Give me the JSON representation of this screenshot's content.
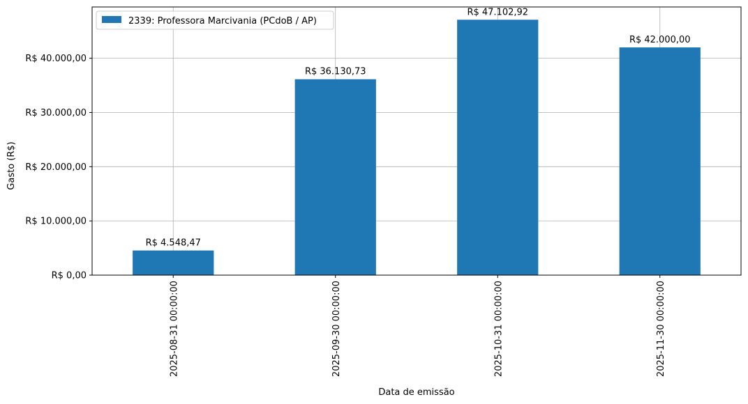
{
  "chart_data": {
    "type": "bar",
    "categories": [
      "2025-08-31 00:00:00",
      "2025-09-30 00:00:00",
      "2025-10-31 00:00:00",
      "2025-11-30 00:00:00"
    ],
    "series": [
      {
        "name": "2339: Professora Marcivania (PCdoB / AP)",
        "values": [
          4548.47,
          36130.73,
          47102.92,
          42000.0
        ],
        "color": "#1f77b4"
      }
    ],
    "data_labels": [
      "R$ 4.548,47",
      "R$ 36.130,73",
      "R$ 47.102,92",
      "R$ 42.000,00"
    ],
    "xlabel": "Data de emissão",
    "ylabel": "Gasto (R$)",
    "ylim": [
      0,
      49458.07
    ],
    "yticks": [
      0,
      10000,
      20000,
      30000,
      40000
    ],
    "ytick_labels": [
      "R$ 0,00",
      "R$ 10.000,00",
      "R$ 20.000,00",
      "R$ 30.000,00",
      "R$ 40.000,00"
    ],
    "grid": true,
    "legend_position": "top-left"
  }
}
